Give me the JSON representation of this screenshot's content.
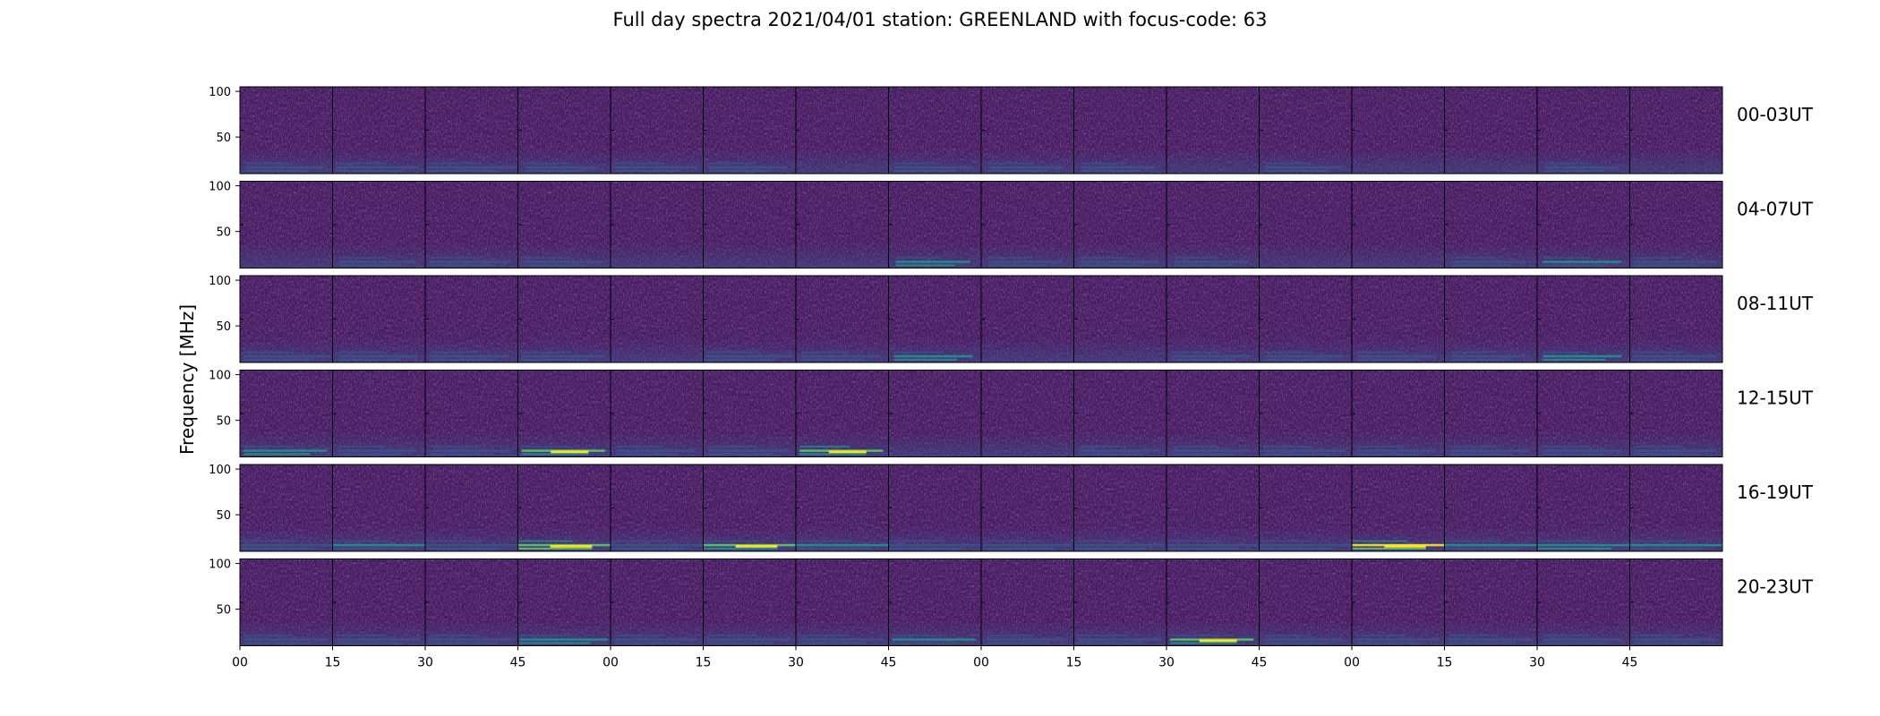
{
  "title": "Full day spectra 2021/04/01 station: GREENLAND with focus-code: 63",
  "chart_data": {
    "type": "heatmap",
    "title": "Full day spectra 2021/04/01 station: GREENLAND with focus-code: 63",
    "ylabel": "Frequency [MHz]",
    "xlabel": "",
    "yticks": [
      100,
      50
    ],
    "ytick_labels": [
      "100",
      "50"
    ],
    "ylim": [
      10,
      105
    ],
    "xtick_labels": [
      "00",
      "15",
      "30",
      "45",
      "00",
      "15",
      "30",
      "45",
      "00",
      "15",
      "30",
      "45",
      "00",
      "15",
      "30",
      "45"
    ],
    "panels_per_row": 16,
    "minutes_per_panel": 15,
    "rows": [
      {
        "label": "00-03UT",
        "hot": [
          [
            0,
            0.3,
            0.2
          ],
          [
            1,
            0.35,
            0.12
          ],
          [
            2,
            0.45,
            0.25
          ],
          [
            3,
            0.25,
            0.22
          ],
          [
            4,
            0.35,
            0.3
          ],
          [
            5,
            0.3,
            0.15
          ],
          [
            7,
            0.3,
            0.25
          ],
          [
            8,
            0.25,
            0.1
          ],
          [
            9,
            0.25,
            0.15
          ],
          [
            11,
            0.3,
            0.12
          ],
          [
            14,
            0.25,
            0.1
          ]
        ]
      },
      {
        "label": "04-07UT",
        "hot": [
          [
            1,
            0.28,
            0.2
          ],
          [
            2,
            0.3,
            0.3
          ],
          [
            3,
            0.3,
            0.3
          ],
          [
            7,
            0.25,
            0.45
          ],
          [
            8,
            0.25,
            0.15
          ],
          [
            9,
            0.3,
            0.22
          ],
          [
            10,
            0.25,
            0.12
          ],
          [
            13,
            0.25,
            0.15
          ],
          [
            14,
            0.3,
            0.35
          ],
          [
            15,
            0.35,
            0.2
          ]
        ]
      },
      {
        "label": "08-11UT",
        "hot": [
          [
            0,
            0.35,
            0.15
          ],
          [
            1,
            0.3,
            0.2
          ],
          [
            2,
            0.3,
            0.15
          ],
          [
            3,
            0.35,
            0.25
          ],
          [
            5,
            0.4,
            0.2
          ],
          [
            6,
            0.3,
            0.12
          ],
          [
            7,
            0.3,
            0.45
          ],
          [
            10,
            0.3,
            0.15
          ],
          [
            11,
            0.3,
            0.25
          ],
          [
            12,
            0.3,
            0.25
          ],
          [
            13,
            0.25,
            0.2
          ],
          [
            14,
            0.3,
            0.45
          ],
          [
            15,
            0.35,
            0.3
          ]
        ]
      },
      {
        "label": "12-15UT",
        "hot": [
          [
            0,
            0.35,
            0.45
          ],
          [
            1,
            0.3,
            0.15
          ],
          [
            2,
            0.3,
            0.15
          ],
          [
            3,
            0.35,
            0.55
          ],
          [
            4,
            0.3,
            0.2
          ],
          [
            5,
            0.3,
            0.15
          ],
          [
            6,
            0.35,
            0.65
          ],
          [
            9,
            0.3,
            0.25
          ],
          [
            10,
            0.3,
            0.12
          ],
          [
            11,
            0.35,
            0.3
          ],
          [
            12,
            0.3,
            0.25
          ],
          [
            13,
            0.3,
            0.22
          ],
          [
            14,
            0.3,
            0.2
          ],
          [
            15,
            0.35,
            0.3
          ]
        ]
      },
      {
        "label": "16-19UT",
        "hot": [
          [
            0,
            0.45,
            0.3
          ],
          [
            1,
            0.45,
            0.35
          ],
          [
            2,
            0.45,
            0.3
          ],
          [
            3,
            0.5,
            0.75
          ],
          [
            4,
            0.45,
            0.2
          ],
          [
            5,
            0.5,
            0.6
          ],
          [
            6,
            0.45,
            0.35
          ],
          [
            7,
            0.45,
            0.3
          ],
          [
            8,
            0.4,
            0.22
          ],
          [
            9,
            0.4,
            0.2
          ],
          [
            10,
            0.4,
            0.2
          ],
          [
            11,
            0.45,
            0.3
          ],
          [
            12,
            0.5,
            0.8
          ],
          [
            13,
            0.45,
            0.4
          ],
          [
            14,
            0.45,
            0.45
          ],
          [
            15,
            0.45,
            0.35
          ]
        ]
      },
      {
        "label": "20-23UT",
        "hot": [
          [
            0,
            0.35,
            0.2
          ],
          [
            1,
            0.35,
            0.25
          ],
          [
            2,
            0.35,
            0.3
          ],
          [
            3,
            0.4,
            0.45
          ],
          [
            4,
            0.35,
            0.3
          ],
          [
            5,
            0.35,
            0.2
          ],
          [
            6,
            0.35,
            0.2
          ],
          [
            7,
            0.35,
            0.35
          ],
          [
            8,
            0.3,
            0.15
          ],
          [
            9,
            0.35,
            0.25
          ],
          [
            10,
            0.35,
            0.55
          ],
          [
            11,
            0.3,
            0.15
          ],
          [
            12,
            0.35,
            0.3
          ],
          [
            13,
            0.35,
            0.3
          ],
          [
            14,
            0.3,
            0.2
          ],
          [
            15,
            0.35,
            0.3
          ]
        ]
      }
    ],
    "colormap": [
      "#440154",
      "#3b528b",
      "#21918c",
      "#5ec962",
      "#fde725"
    ],
    "background_color": "#46185f",
    "grid": false,
    "legend": "none"
  }
}
